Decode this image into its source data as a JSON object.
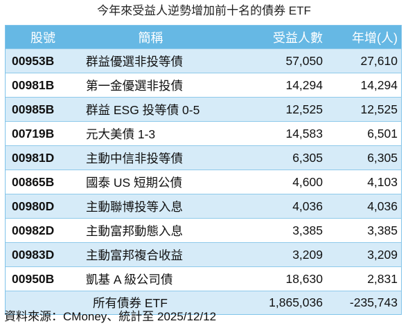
{
  "title": "今年來受益人逆勢增加前十名的債券 ETF",
  "headers": {
    "code": "股號",
    "name": "簡稱",
    "holders": "受益人數",
    "increase": "年增(人)"
  },
  "rows": [
    {
      "code": "00953B",
      "name": "群益優選非投等債",
      "holders": "57,050",
      "increase": "27,610"
    },
    {
      "code": "00981B",
      "name": "第一金優選非投債",
      "holders": "14,294",
      "increase": "14,294"
    },
    {
      "code": "00985B",
      "name": "群益 ESG 投等債 0-5",
      "holders": "12,525",
      "increase": "12,525"
    },
    {
      "code": "00719B",
      "name": "元大美債 1-3",
      "holders": "14,583",
      "increase": "6,501"
    },
    {
      "code": "00981D",
      "name": "主動中信非投等債",
      "holders": "6,305",
      "increase": "6,305"
    },
    {
      "code": "00865B",
      "name": "國泰 US 短期公債",
      "holders": "4,600",
      "increase": "4,103"
    },
    {
      "code": "00980D",
      "name": "主動聯博投等入息",
      "holders": "4,036",
      "increase": "4,036"
    },
    {
      "code": "00982D",
      "name": "主動富邦動態入息",
      "holders": "3,385",
      "increase": "3,385"
    },
    {
      "code": "00983D",
      "name": "主動富邦複合收益",
      "holders": "3,209",
      "increase": "3,209"
    },
    {
      "code": "00950B",
      "name": "凱基 A 級公司債",
      "holders": "18,630",
      "increase": "2,831"
    }
  ],
  "total": {
    "label": "所有債券 ETF",
    "holders": "1,865,036",
    "increase": "-235,743"
  },
  "source": "資料來源：CMoney、統計至 2025/12/12",
  "colors": {
    "header_bg": "#66b8e4",
    "stripe_bg": "#d6ebf8",
    "border": "#8ec9ea"
  }
}
